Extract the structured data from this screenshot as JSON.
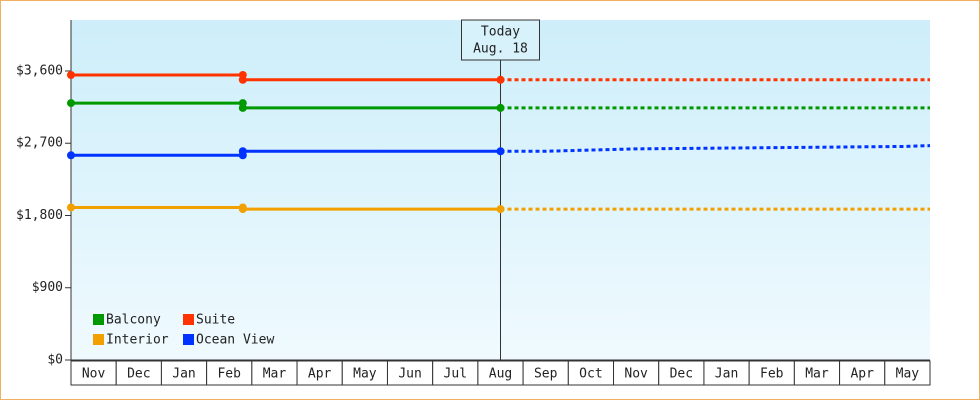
{
  "chart_data": {
    "type": "line",
    "categories": [
      "Nov",
      "Dec",
      "Jan",
      "Feb",
      "Mar",
      "Apr",
      "May",
      "Jun",
      "Jul",
      "Aug",
      "Sep",
      "Oct",
      "Nov",
      "Dec",
      "Jan",
      "Feb",
      "Mar",
      "Apr",
      "May"
    ],
    "xlim": [
      0,
      19
    ],
    "ylim": [
      0,
      4235
    ],
    "yticks": [
      {
        "value": 0,
        "label": "$0"
      },
      {
        "value": 900,
        "label": "$900"
      },
      {
        "value": 1800,
        "label": "$1,800"
      },
      {
        "value": 2700,
        "label": "$2,700"
      },
      {
        "value": 3600,
        "label": "$3,600"
      }
    ],
    "today": {
      "x": 9.5,
      "label": "Today",
      "date": "Aug. 18"
    },
    "legend_position": "lower left",
    "series": [
      {
        "name": "Balcony",
        "color": "#009900",
        "x": [
          0,
          3.8,
          3.8,
          9.5
        ],
        "values": [
          3200,
          3200,
          3140,
          3140
        ],
        "forecast_x": [
          9.5,
          19
        ],
        "forecast_values": [
          3140,
          3140
        ]
      },
      {
        "name": "Suite",
        "color": "#ff3300",
        "x": [
          0,
          3.8,
          3.8,
          9.5
        ],
        "values": [
          3550,
          3550,
          3490,
          3490
        ],
        "forecast_x": [
          9.5,
          19
        ],
        "forecast_values": [
          3490,
          3490
        ]
      },
      {
        "name": "Interior",
        "color": "#f2a000",
        "x": [
          0,
          3.8,
          3.8,
          9.5
        ],
        "values": [
          1900,
          1900,
          1880,
          1880
        ],
        "forecast_x": [
          9.5,
          19
        ],
        "forecast_values": [
          1880,
          1880
        ]
      },
      {
        "name": "Ocean View",
        "color": "#0033ff",
        "x": [
          0,
          3.8,
          3.8,
          9.5
        ],
        "values": [
          2550,
          2550,
          2600,
          2600
        ],
        "forecast_x": [
          9.5,
          10.5,
          12.5,
          14.5,
          16.5,
          18.4,
          19
        ],
        "forecast_values": [
          2600,
          2600,
          2630,
          2640,
          2650,
          2660,
          2670
        ]
      }
    ]
  }
}
